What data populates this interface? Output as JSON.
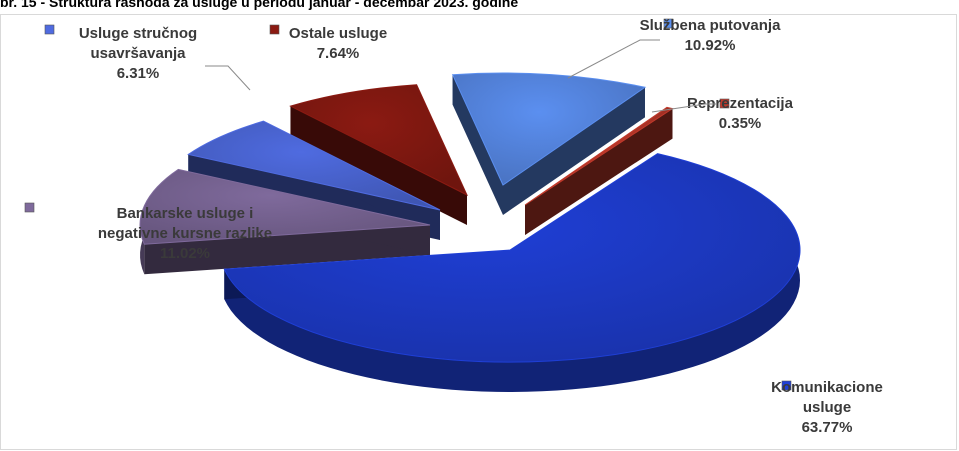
{
  "chart_title": "br. 15 - Struktura rashoda za usluge u periodu januar - decembar 2023. godine",
  "colors": {
    "komunikacione": "#1f3fd6",
    "bankarske": "#7f6a9c",
    "strucno": "#4f6be0",
    "ostale": "#8b1a12",
    "sluzbena": "#5b8ff0",
    "reprezentacija": "#c0392b"
  },
  "chart_data": {
    "type": "pie",
    "title": "br. 15 - Struktura rashoda za usluge u periodu januar - decembar 2023. godine",
    "legend": "labels on slices",
    "slices": [
      {
        "key": "sluzbena",
        "label": [
          "Službena putovanja"
        ],
        "value": 10.92,
        "value_label": "10.92%"
      },
      {
        "key": "reprezentacija",
        "label": [
          "Reprezentacija"
        ],
        "value": 0.35,
        "value_label": "0.35%"
      },
      {
        "key": "komunikacione",
        "label": [
          "Komunikacione",
          "usluge"
        ],
        "value": 63.77,
        "value_label": "63.77%"
      },
      {
        "key": "bankarske",
        "label": [
          "Bankarske usluge i",
          "negativne kursne razlike"
        ],
        "value": 11.02,
        "value_label": "11.02%"
      },
      {
        "key": "strucno",
        "label": [
          "Usluge stručnog",
          "usavršavanja"
        ],
        "value": 6.31,
        "value_label": "6.31%"
      },
      {
        "key": "ostale",
        "label": [
          "Ostale usluge"
        ],
        "value": 7.64,
        "value_label": "7.64%"
      }
    ]
  }
}
